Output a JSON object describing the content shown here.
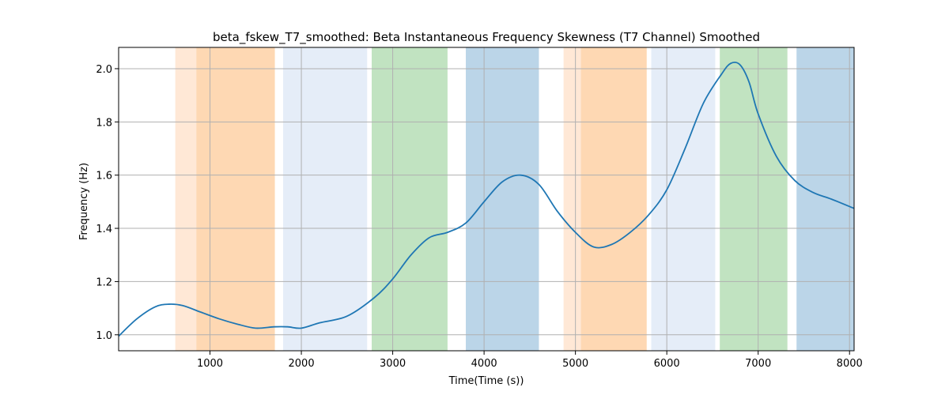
{
  "chart_data": {
    "type": "line",
    "title": "beta_fskew_T7_smoothed: Beta Instantaneous Frequency Skewness (T7 Channel) Smoothed",
    "xlabel": "Time(Time (s))",
    "ylabel": "Frequency (Hz)",
    "xlim": [
      0,
      8050
    ],
    "ylim": [
      0.94,
      2.08
    ],
    "xticks": [
      1000,
      2000,
      3000,
      4000,
      5000,
      6000,
      7000,
      8000
    ],
    "yticks": [
      1.0,
      1.2,
      1.4,
      1.6,
      1.8,
      2.0
    ],
    "xtick_labels": [
      "1000",
      "2000",
      "3000",
      "4000",
      "5000",
      "6000",
      "7000",
      "8000"
    ],
    "ytick_labels": [
      "1.0",
      "1.2",
      "1.4",
      "1.6",
      "1.8",
      "2.0"
    ],
    "grid": true,
    "line_color": "#1f77b4",
    "shaded_regions": [
      {
        "start": 620,
        "end": 850,
        "color": "#ffe8d6"
      },
      {
        "start": 850,
        "end": 1710,
        "color": "#fed8b3"
      },
      {
        "start": 1800,
        "end": 2720,
        "color": "#e5edf8"
      },
      {
        "start": 2770,
        "end": 3600,
        "color": "#c1e3c1"
      },
      {
        "start": 3800,
        "end": 4600,
        "color": "#bbd5e8"
      },
      {
        "start": 4870,
        "end": 5060,
        "color": "#ffe8d6"
      },
      {
        "start": 5060,
        "end": 5780,
        "color": "#fed8b3"
      },
      {
        "start": 5830,
        "end": 6530,
        "color": "#e5edf8"
      },
      {
        "start": 6580,
        "end": 7320,
        "color": "#c1e3c1"
      },
      {
        "start": 7420,
        "end": 8050,
        "color": "#bbd5e8"
      }
    ],
    "series": [
      {
        "x": [
          0,
          200,
          400,
          550,
          700,
          900,
          1100,
          1300,
          1500,
          1700,
          1850,
          2000,
          2200,
          2500,
          2800,
          3000,
          3200,
          3400,
          3600,
          3800,
          4000,
          4200,
          4400,
          4600,
          4800,
          5000,
          5200,
          5400,
          5600,
          5800,
          6000,
          6200,
          6400,
          6600,
          6700,
          6800,
          6900,
          7000,
          7200,
          7400,
          7600,
          7800,
          8050
        ],
        "y": [
          0.995,
          1.06,
          1.105,
          1.115,
          1.11,
          1.085,
          1.06,
          1.04,
          1.025,
          1.03,
          1.03,
          1.025,
          1.045,
          1.07,
          1.14,
          1.21,
          1.3,
          1.365,
          1.385,
          1.42,
          1.5,
          1.575,
          1.6,
          1.565,
          1.465,
          1.385,
          1.33,
          1.34,
          1.385,
          1.45,
          1.545,
          1.7,
          1.87,
          1.98,
          2.02,
          2.015,
          1.95,
          1.83,
          1.67,
          1.58,
          1.535,
          1.51,
          1.475
        ]
      }
    ]
  }
}
